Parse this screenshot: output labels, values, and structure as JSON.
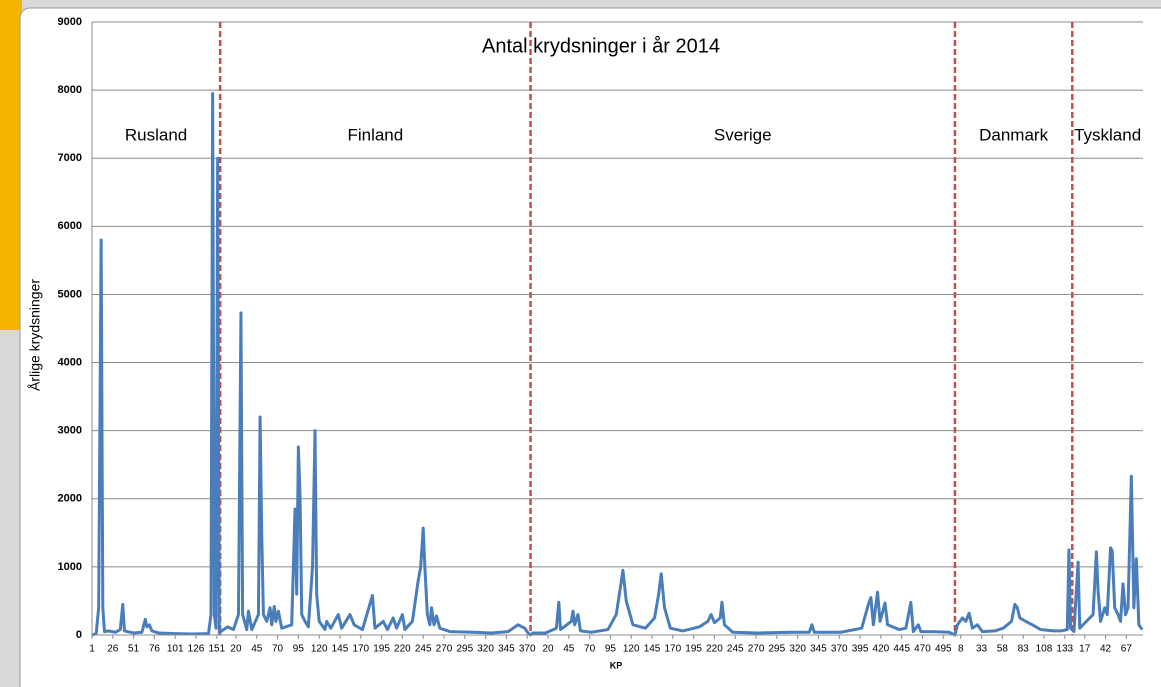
{
  "chart_data": {
    "type": "line",
    "title": "Antal krydsninger i år 2014",
    "y_label": "Årlige krydsninger",
    "x_label": "KP",
    "color": "#4a7ebb",
    "divider_color": "#c0504d",
    "grid": true,
    "xlim": [
      0,
      1263
    ],
    "ylim": [
      0,
      9000
    ],
    "yticks": [
      0,
      1000,
      2000,
      3000,
      4000,
      5000,
      6000,
      7000,
      8000,
      9000
    ],
    "regions": [
      "Rusland",
      "Finland",
      "Sverige",
      "Danmark",
      "Tyskland"
    ],
    "dividers": [
      154,
      527,
      1037,
      1178
    ],
    "xticks": [
      {
        "value": 0,
        "label": "1"
      },
      {
        "value": 25,
        "label": "26"
      },
      {
        "value": 50,
        "label": "51"
      },
      {
        "value": 75,
        "label": "76"
      },
      {
        "value": 100,
        "label": "101"
      },
      {
        "value": 125,
        "label": "126"
      },
      {
        "value": 150,
        "label": "151"
      },
      {
        "value": 173,
        "label": "20"
      },
      {
        "value": 198,
        "label": "45"
      },
      {
        "value": 223,
        "label": "70"
      },
      {
        "value": 248,
        "label": "95"
      },
      {
        "value": 273,
        "label": "120"
      },
      {
        "value": 298,
        "label": "145"
      },
      {
        "value": 323,
        "label": "170"
      },
      {
        "value": 348,
        "label": "195"
      },
      {
        "value": 373,
        "label": "220"
      },
      {
        "value": 398,
        "label": "245"
      },
      {
        "value": 423,
        "label": "270"
      },
      {
        "value": 448,
        "label": "295"
      },
      {
        "value": 473,
        "label": "320"
      },
      {
        "value": 498,
        "label": "345"
      },
      {
        "value": 523,
        "label": "370"
      },
      {
        "value": 548,
        "label": "20"
      },
      {
        "value": 573,
        "label": "45"
      },
      {
        "value": 598,
        "label": "70"
      },
      {
        "value": 623,
        "label": "95"
      },
      {
        "value": 648,
        "label": "120"
      },
      {
        "value": 673,
        "label": "145"
      },
      {
        "value": 698,
        "label": "170"
      },
      {
        "value": 723,
        "label": "195"
      },
      {
        "value": 748,
        "label": "220"
      },
      {
        "value": 773,
        "label": "245"
      },
      {
        "value": 798,
        "label": "270"
      },
      {
        "value": 823,
        "label": "295"
      },
      {
        "value": 848,
        "label": "320"
      },
      {
        "value": 873,
        "label": "345"
      },
      {
        "value": 898,
        "label": "370"
      },
      {
        "value": 923,
        "label": "395"
      },
      {
        "value": 948,
        "label": "420"
      },
      {
        "value": 973,
        "label": "445"
      },
      {
        "value": 998,
        "label": "470"
      },
      {
        "value": 1023,
        "label": "495"
      },
      {
        "value": 1044,
        "label": "8"
      },
      {
        "value": 1069,
        "label": "33"
      },
      {
        "value": 1094,
        "label": "58"
      },
      {
        "value": 1119,
        "label": "83"
      },
      {
        "value": 1144,
        "label": "108"
      },
      {
        "value": 1169,
        "label": "133"
      },
      {
        "value": 1193,
        "label": "17"
      },
      {
        "value": 1218,
        "label": "42"
      },
      {
        "value": 1243,
        "label": "67"
      }
    ],
    "x": [
      0,
      5,
      8,
      11,
      13,
      15,
      20,
      28,
      34,
      37,
      39,
      50,
      60,
      64,
      66,
      69,
      72,
      80,
      100,
      120,
      140,
      143,
      145,
      147,
      149,
      151,
      153,
      156,
      163,
      170,
      176,
      179,
      181,
      186,
      188,
      192,
      200,
      202,
      204,
      206,
      210,
      214,
      216,
      219,
      221,
      224,
      228,
      240,
      244,
      246,
      248,
      250,
      252,
      256,
      260,
      265,
      268,
      270,
      273,
      280,
      282,
      287,
      296,
      300,
      310,
      315,
      325,
      337,
      340,
      350,
      355,
      362,
      366,
      373,
      376,
      385,
      392,
      395,
      398,
      400,
      403,
      406,
      408,
      411,
      414,
      418,
      430,
      460,
      480,
      500,
      512,
      520,
      524,
      527,
      530,
      545,
      558,
      561,
      563,
      576,
      578,
      580,
      584,
      587,
      600,
      620,
      630,
      635,
      638,
      642,
      650,
      665,
      676,
      681,
      684,
      688,
      695,
      710,
      730,
      740,
      744,
      748,
      755,
      757,
      760,
      770,
      800,
      840,
      862,
      865,
      868,
      900,
      925,
      933,
      936,
      939,
      944,
      947,
      953,
      956,
      970,
      978,
      982,
      984,
      987,
      993,
      996,
      1010,
      1030,
      1037,
      1040,
      1046,
      1050,
      1054,
      1058,
      1064,
      1070,
      1085,
      1095,
      1105,
      1109,
      1112,
      1115,
      1122,
      1130,
      1140,
      1155,
      1165,
      1172,
      1174,
      1176,
      1180,
      1185,
      1187,
      1195,
      1203,
      1207,
      1209,
      1212,
      1217,
      1220,
      1224,
      1226,
      1229,
      1233,
      1236,
      1239,
      1242,
      1245,
      1249,
      1252,
      1255,
      1258,
      1262
    ],
    "values": [
      0,
      20,
      400,
      5800,
      400,
      50,
      60,
      40,
      80,
      450,
      60,
      30,
      40,
      230,
      120,
      150,
      60,
      30,
      20,
      15,
      20,
      300,
      7950,
      300,
      100,
      7000,
      30,
      60,
      120,
      80,
      300,
      4730,
      300,
      80,
      350,
      80,
      300,
      3200,
      1450,
      300,
      200,
      400,
      150,
      420,
      200,
      350,
      100,
      150,
      1850,
      600,
      2760,
      2050,
      300,
      200,
      120,
      1000,
      3000,
      600,
      200,
      80,
      200,
      100,
      300,
      100,
      300,
      150,
      80,
      580,
      100,
      200,
      80,
      250,
      100,
      300,
      80,
      200,
      800,
      1000,
      1570,
      1000,
      300,
      150,
      400,
      150,
      280,
      100,
      50,
      40,
      30,
      50,
      150,
      100,
      30,
      0,
      30,
      30,
      100,
      480,
      80,
      200,
      350,
      150,
      300,
      60,
      40,
      80,
      300,
      700,
      950,
      500,
      150,
      100,
      250,
      600,
      900,
      400,
      100,
      60,
      120,
      200,
      300,
      180,
      250,
      480,
      150,
      40,
      30,
      40,
      40,
      150,
      40,
      40,
      100,
      450,
      550,
      150,
      630,
      200,
      470,
      150,
      80,
      100,
      350,
      480,
      50,
      150,
      50,
      50,
      40,
      0,
      150,
      250,
      200,
      320,
      100,
      150,
      50,
      60,
      100,
      200,
      450,
      400,
      250,
      200,
      150,
      80,
      60,
      60,
      80,
      1250,
      100,
      50,
      1070,
      100,
      200,
      300,
      1220,
      650,
      200,
      400,
      300,
      1280,
      1230,
      400,
      300,
      200,
      750,
      300,
      400,
      2330,
      400,
      1120,
      150,
      80
    ]
  }
}
